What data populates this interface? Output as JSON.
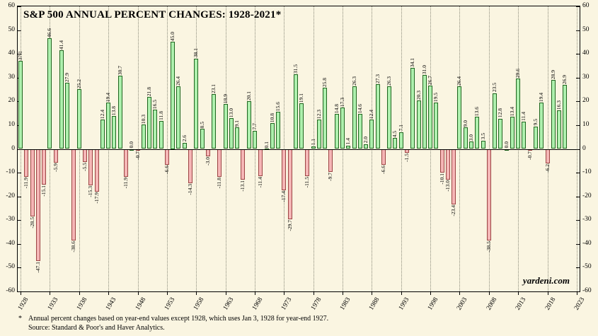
{
  "title": "S&P 500 ANNUAL PERCENT CHANGES: 1928-2021*",
  "watermark": "yardeni.com",
  "footnote": {
    "star": "*",
    "line1": "Annual percent changes based on year-end values except 1928, which uses Jan 3, 1928 for year-end 1927.",
    "line2": "Source: Standard & Poor's and Haver Analytics."
  },
  "colors": {
    "background": "#faf5e1",
    "positive_fill": "#aef0ae",
    "positive_border": "#1e651e",
    "negative_fill": "#f5b6b6",
    "negative_border": "#9c4444",
    "value_label_text": "#000000",
    "axis": "#000000"
  },
  "chart_data": {
    "type": "bar",
    "title": "S&P 500 ANNUAL PERCENT CHANGES: 1928-2021*",
    "xlabel": "",
    "ylabel": "",
    "ylim": [
      -60,
      60
    ],
    "y_ticks": [
      60,
      50,
      40,
      30,
      20,
      10,
      0,
      -10,
      -20,
      -30,
      -40,
      -50,
      -60
    ],
    "x_tick_years": [
      1928,
      1933,
      1938,
      1943,
      1948,
      1953,
      1958,
      1963,
      1968,
      1973,
      1978,
      1983,
      1988,
      1993,
      1998,
      2003,
      2008,
      2013,
      2018,
      2023
    ],
    "x_start_year": 1928,
    "x_end_year": 2021,
    "x_axis_end_year": 2023,
    "grid": "vertical-dotted-every-5-years",
    "legend": "none",
    "bar_labels": "rotated-90-at-bar-ends",
    "years": [
      1928,
      1929,
      1930,
      1931,
      1932,
      1933,
      1934,
      1935,
      1936,
      1937,
      1938,
      1939,
      1940,
      1941,
      1942,
      1943,
      1944,
      1945,
      1946,
      1947,
      1948,
      1949,
      1950,
      1951,
      1952,
      1953,
      1954,
      1955,
      1956,
      1957,
      1958,
      1959,
      1960,
      1961,
      1962,
      1963,
      1964,
      1965,
      1966,
      1967,
      1968,
      1969,
      1970,
      1971,
      1972,
      1973,
      1974,
      1975,
      1976,
      1977,
      1978,
      1979,
      1980,
      1981,
      1982,
      1983,
      1984,
      1985,
      1986,
      1987,
      1988,
      1989,
      1990,
      1991,
      1992,
      1993,
      1994,
      1995,
      1996,
      1997,
      1998,
      1999,
      2000,
      2001,
      2002,
      2003,
      2004,
      2005,
      2006,
      2007,
      2008,
      2009,
      2010,
      2011,
      2012,
      2013,
      2014,
      2015,
      2016,
      2017,
      2018,
      2019,
      2020,
      2021
    ],
    "values": [
      37.1,
      -11.9,
      -28.5,
      -47.1,
      -15.1,
      46.6,
      -5.9,
      41.4,
      27.9,
      -38.6,
      25.2,
      -5.5,
      -15.3,
      -17.9,
      12.4,
      19.4,
      13.8,
      30.7,
      -11.9,
      0.0,
      -0.7,
      10.3,
      21.8,
      16.5,
      11.8,
      -6.6,
      45.0,
      26.4,
      2.6,
      -14.3,
      38.1,
      8.5,
      -3.0,
      23.1,
      -11.8,
      18.9,
      13.0,
      9.1,
      -13.1,
      20.1,
      7.7,
      -11.4,
      0.1,
      10.8,
      15.6,
      -17.4,
      -29.7,
      31.5,
      19.1,
      -11.5,
      1.1,
      12.3,
      25.8,
      -9.7,
      14.8,
      17.3,
      1.4,
      26.3,
      14.6,
      2.0,
      12.4,
      27.3,
      -6.6,
      26.3,
      4.5,
      7.1,
      -1.5,
      34.1,
      20.3,
      31.0,
      26.7,
      19.5,
      -10.1,
      -13.0,
      -23.4,
      26.4,
      9.0,
      3.0,
      13.6,
      3.5,
      -38.5,
      23.5,
      12.8,
      0.0,
      13.4,
      29.6,
      11.4,
      -0.7,
      9.5,
      19.4,
      -6.2,
      28.9,
      16.3,
      26.9
    ]
  }
}
